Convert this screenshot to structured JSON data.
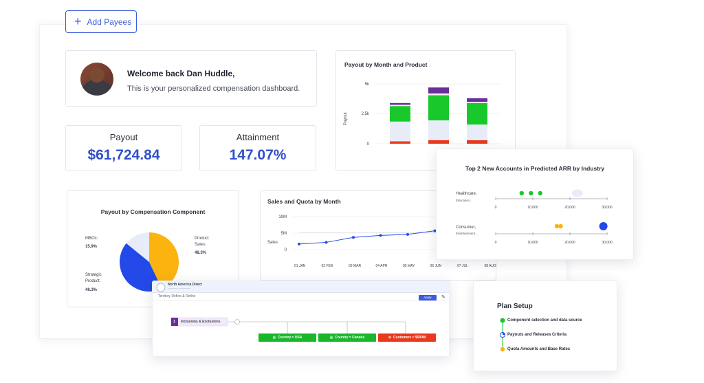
{
  "add_payees": {
    "label": "Add Payees",
    "icon": "plus-icon"
  },
  "welcome": {
    "title": "Welcome back Dan Huddle,",
    "subtitle": "This is your personalized compensation dashboard."
  },
  "kpis": {
    "payout": {
      "label": "Payout",
      "value": "$61,724.84"
    },
    "attainment": {
      "label": "Attainment",
      "value": "147.07%"
    }
  },
  "charts": {
    "bar": {
      "title": "Payout by Month and Product",
      "ylabel": "Payout",
      "yticks": [
        "5k",
        "2.5k",
        "0"
      ]
    },
    "pie": {
      "title": "Payout by Compensation Component",
      "slices": [
        {
          "label": "MBOs:",
          "pct": "15.9%"
        },
        {
          "label": "Product Sales:",
          "pct": "48.3%"
        },
        {
          "label": "Strategic Product:",
          "pct": "48.3%"
        }
      ]
    },
    "line": {
      "title": "Sales and Quota by Month",
      "ylabel": "Sales",
      "yticks": [
        "10M",
        "5M",
        "0"
      ],
      "xticks": [
        "01 JAN",
        "02 FEB",
        "03 MAR",
        "04 APR",
        "05 MAY",
        "06 JUN",
        "07 JUL",
        "08 AUG"
      ]
    },
    "dot": {
      "title": "Top 2 New Accounts in Predicted ARR by Industry",
      "rows": [
        {
          "label": "Healthcare,",
          "sublabel": "Education..."
        },
        {
          "label": "Consumer,",
          "sublabel": "Entertainment..."
        }
      ],
      "xticks": [
        "0",
        "10,000",
        "20,000",
        "30,000"
      ]
    }
  },
  "chart_data": [
    {
      "type": "bar",
      "title": "Payout by Month and Product",
      "ylabel": "Payout",
      "ylim": [
        0,
        5000
      ],
      "categories": [
        "",
        "",
        ""
      ],
      "series": [
        {
          "color": "#e8391c",
          "values": [
            200,
            300,
            300
          ]
        },
        {
          "color": "#e8ecf9",
          "values": [
            1650,
            1650,
            1300
          ]
        },
        {
          "color": "#19c92c",
          "values": [
            1300,
            2100,
            1800
          ]
        },
        {
          "color": "#f2f2f2",
          "values": [
            100,
            150,
            100
          ]
        },
        {
          "color": "#6a2e9c",
          "values": [
            150,
            500,
            300
          ]
        }
      ]
    },
    {
      "type": "pie",
      "title": "Payout by Compensation Component",
      "slices": [
        {
          "label": "MBOs:",
          "value": 15.9,
          "color": "#e8ecf9"
        },
        {
          "label": "Product Sales:",
          "value": 48.3,
          "color": "#fbb40f"
        },
        {
          "label": "Strategic Product:",
          "value": 48.3,
          "color": "#2349e8"
        }
      ]
    },
    {
      "type": "line",
      "title": "Sales and Quota by Month",
      "ylabel": "Sales",
      "ylim": [
        0,
        10000000
      ],
      "x": [
        "01 JAN",
        "02 FEB",
        "03 MAR",
        "04 APR",
        "05 MAY",
        "06 JUN",
        "07 JUL",
        "08 AUG"
      ],
      "series": [
        {
          "color": "#2349e8",
          "values": [
            1700000,
            2200000,
            3700000,
            4300000,
            4600000,
            5700000,
            6300000,
            7000000
          ]
        },
        {
          "color": "#d0d6e4",
          "values": [
            5200000,
            5200000,
            5200000,
            5200000,
            5200000,
            5200000,
            5200000,
            5200000
          ]
        }
      ]
    },
    {
      "type": "scatter",
      "title": "Top 2 New Accounts in Predicted ARR by Industry",
      "xlim": [
        0,
        30000
      ],
      "series": [
        {
          "row": "Healthcare,",
          "points": [
            {
              "x": 7000,
              "color": "#19c92c"
            },
            {
              "x": 9500,
              "color": "#19c92c"
            },
            {
              "x": 12000,
              "color": "#19c92c"
            },
            {
              "x": 22000,
              "color": "#e8ecf9"
            }
          ]
        },
        {
          "row": "Consumer,",
          "points": [
            {
              "x": 16500,
              "color": "#fbb40f"
            },
            {
              "x": 17500,
              "color": "#fbb40f"
            },
            {
              "x": 29000,
              "color": "#2349e8"
            }
          ]
        }
      ]
    }
  ],
  "territory": {
    "header": "North America Direct",
    "sub1": "Territory Define & Refine",
    "apply_label": "Apply",
    "node_num": "1",
    "node_label": "Inclusions & Exclusions",
    "pills": [
      {
        "label": "Country = USA",
        "color": "#19b82b"
      },
      {
        "label": "Country = Canada",
        "color": "#19b82b"
      },
      {
        "label": "Customers < $500M",
        "color": "#e8391c"
      }
    ]
  },
  "plan": {
    "title": "Plan Setup",
    "steps": [
      {
        "label": "Component selection and data source",
        "color": "#19c92c"
      },
      {
        "label": "Payouts and Releases Criteria",
        "color": "#2349e8"
      },
      {
        "label": "Quota Amounts and Base Rates",
        "color": "#fbb40f"
      }
    ]
  }
}
